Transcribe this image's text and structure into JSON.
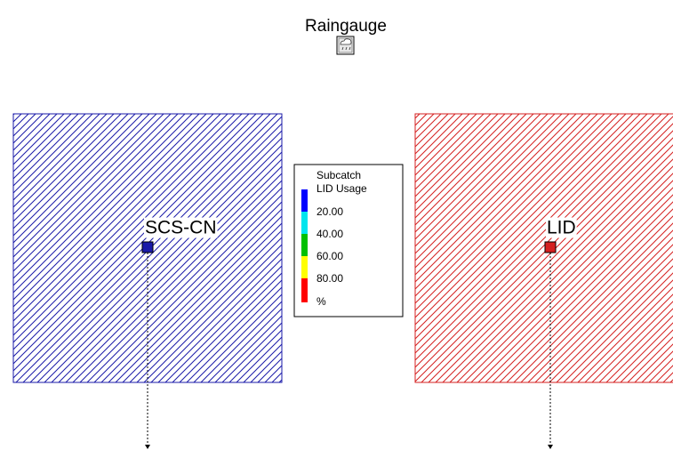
{
  "raingauge": {
    "label": "Raingauge"
  },
  "subcatchments": [
    {
      "label": "SCS-CN",
      "color": "#1a1aa8"
    },
    {
      "label": "LID",
      "color": "#d42020"
    }
  ],
  "legend": {
    "title": [
      "Subcatch",
      "LID Usage"
    ],
    "breaks": [
      "20.00",
      "40.00",
      "60.00",
      "80.00"
    ],
    "unit": "%",
    "colors": [
      "#0000ff",
      "#00e5ee",
      "#00c000",
      "#ffff00",
      "#ff0000"
    ]
  }
}
